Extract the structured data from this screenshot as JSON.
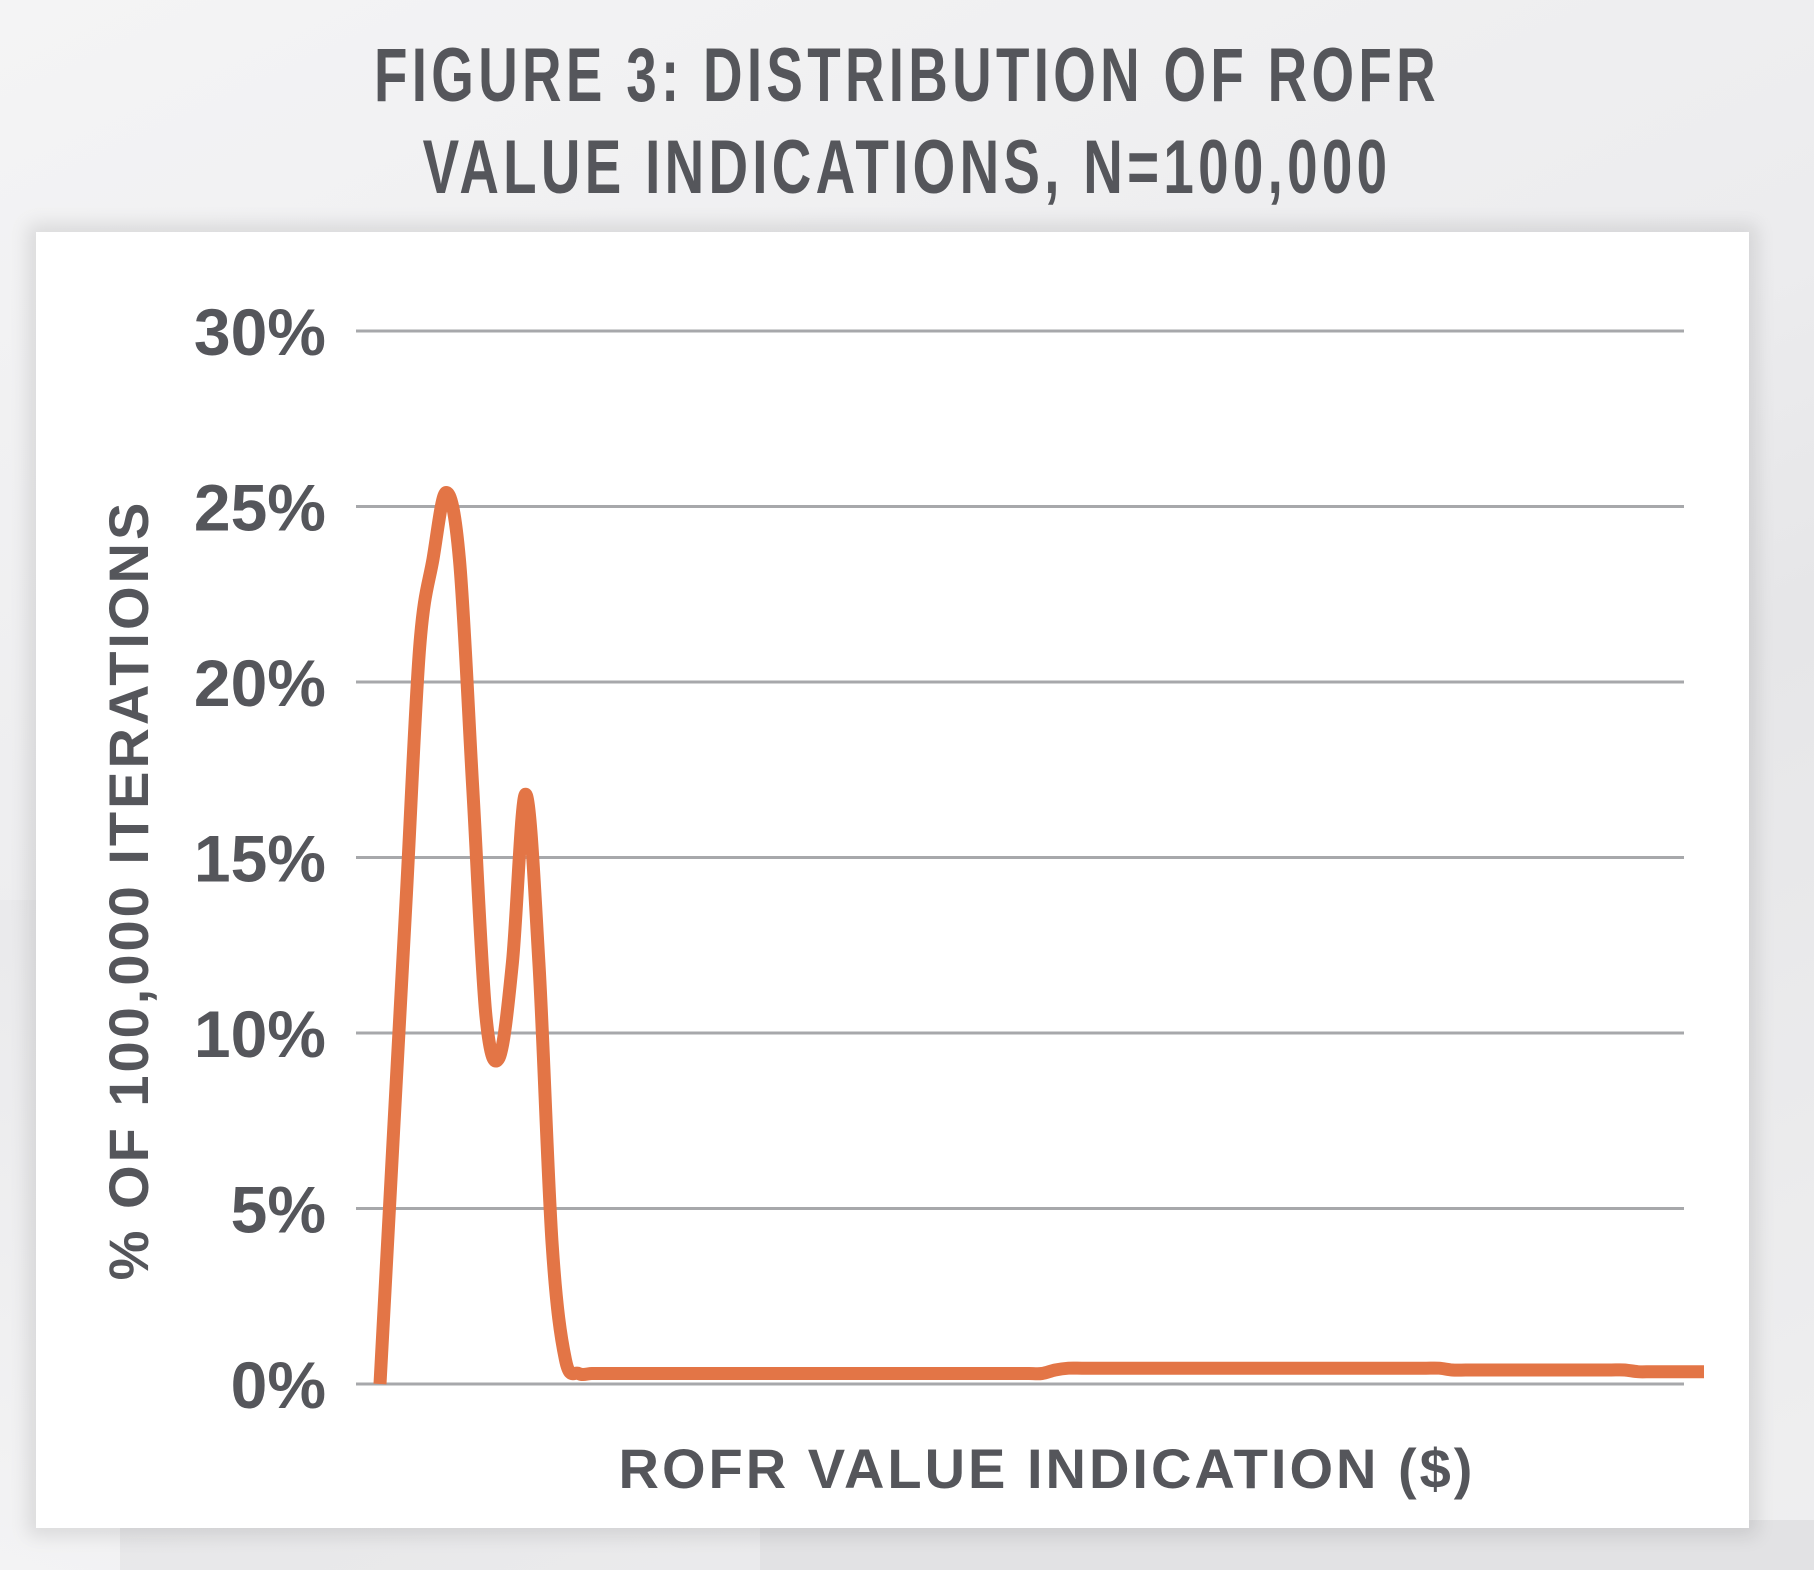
{
  "title_lines": [
    "FIGURE 3: DISTRIBUTION OF ROFR",
    "VALUE INDICATIONS, N=100,000"
  ],
  "colors": {
    "line": "#e37546",
    "grid": "#a7a8ab",
    "text": "#55565b",
    "panel": "#ffffff"
  },
  "chart_data": {
    "type": "line",
    "title": "FIGURE 3: DISTRIBUTION OF ROFR VALUE INDICATIONS, N=100,000",
    "xlabel": "ROFR VALUE INDICATION ($)",
    "ylabel": "% OF 100,000 ITERATIONS",
    "ylim": [
      0,
      30
    ],
    "yticks": [
      0,
      5,
      10,
      15,
      20,
      25,
      30
    ],
    "ytick_labels": [
      "0%",
      "5%",
      "10%",
      "15%",
      "20%",
      "25%",
      "30%"
    ],
    "xticks_shown": false,
    "grid": "horizontal",
    "series": [
      {
        "x": [
          0,
          1,
          2,
          3,
          4,
          5,
          6,
          7,
          8,
          9,
          10,
          11,
          12,
          13,
          14,
          15,
          16,
          17,
          18,
          19,
          20,
          21,
          22,
          23,
          24,
          25,
          26,
          27,
          28,
          29,
          30,
          31,
          32,
          33,
          34,
          35,
          36,
          37,
          38,
          39,
          40,
          41,
          42,
          43,
          44,
          45,
          46,
          47,
          48,
          49,
          50,
          51,
          52,
          53,
          54,
          55,
          56,
          57,
          58,
          59,
          60,
          61,
          62,
          63,
          64,
          65,
          66,
          67,
          68,
          69,
          70,
          71,
          72,
          73,
          74,
          75,
          76,
          77,
          78,
          79,
          80,
          81,
          82,
          83,
          84,
          85,
          86,
          87,
          88,
          89,
          90,
          91,
          92,
          93,
          94,
          95,
          96,
          97,
          98,
          99,
          100
        ],
        "y": [
          0.0,
          7.0,
          14.0,
          21.0,
          23.5,
          25.4,
          23.5,
          17.0,
          10.5,
          9.3,
          12.0,
          16.8,
          12.0,
          4.0,
          0.7,
          0.3,
          0.3,
          0.3,
          0.3,
          0.3,
          0.3,
          0.3,
          0.3,
          0.3,
          0.3,
          0.3,
          0.3,
          0.3,
          0.3,
          0.3,
          0.3,
          0.3,
          0.3,
          0.3,
          0.3,
          0.3,
          0.3,
          0.3,
          0.3,
          0.3,
          0.3,
          0.3,
          0.3,
          0.3,
          0.3,
          0.3,
          0.3,
          0.3,
          0.3,
          0.3,
          0.3,
          0.4,
          0.45,
          0.45,
          0.45,
          0.45,
          0.45,
          0.45,
          0.45,
          0.45,
          0.45,
          0.45,
          0.45,
          0.45,
          0.45,
          0.45,
          0.45,
          0.45,
          0.45,
          0.45,
          0.45,
          0.45,
          0.45,
          0.45,
          0.45,
          0.45,
          0.45,
          0.45,
          0.45,
          0.45,
          0.45,
          0.4,
          0.4,
          0.4,
          0.4,
          0.4,
          0.4,
          0.4,
          0.4,
          0.4,
          0.4,
          0.4,
          0.4,
          0.4,
          0.4,
          0.35,
          0.35,
          0.35,
          0.35,
          0.35,
          0.35
        ]
      }
    ]
  }
}
